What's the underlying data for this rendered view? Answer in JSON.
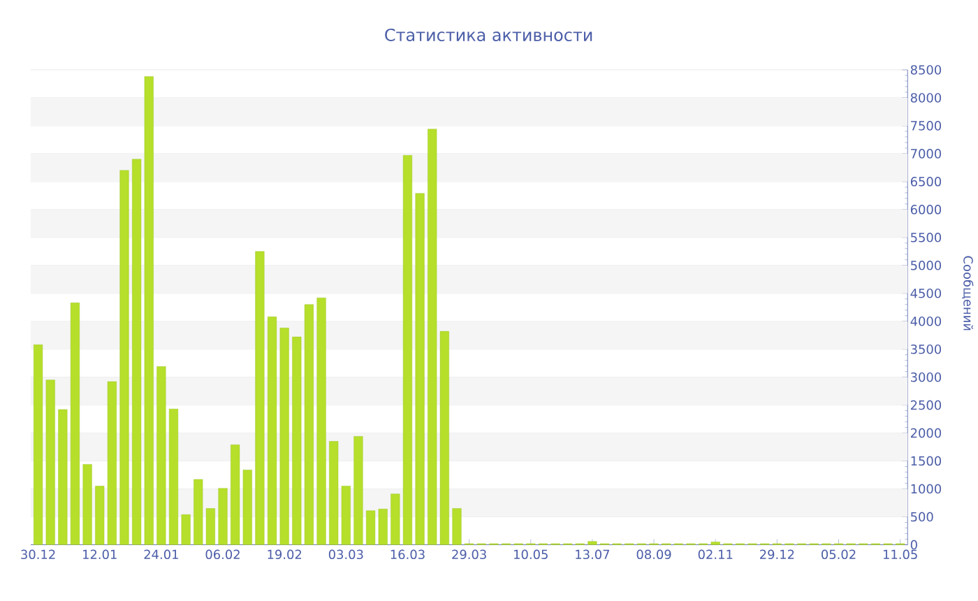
{
  "chart_data": {
    "type": "bar",
    "title": "Статистика активности",
    "ylabel": "Сообщений",
    "categories": [
      "30.12",
      null,
      null,
      null,
      null,
      "12.01",
      null,
      null,
      null,
      null,
      "24.01",
      null,
      null,
      null,
      null,
      "06.02",
      null,
      null,
      null,
      null,
      "19.02",
      null,
      null,
      null,
      null,
      "03.03",
      null,
      null,
      null,
      null,
      "16.03",
      null,
      null,
      null,
      null,
      "29.03",
      null,
      null,
      null,
      null,
      "10.05",
      null,
      null,
      null,
      null,
      "13.07",
      null,
      null,
      null,
      null,
      "08.09",
      null,
      null,
      null,
      null,
      "02.11",
      null,
      null,
      null,
      null,
      "29.12",
      null,
      null,
      null,
      null,
      "05.02",
      null,
      null,
      null,
      null,
      "11.05"
    ],
    "values": [
      3580,
      2950,
      2420,
      4330,
      1440,
      1050,
      2920,
      6700,
      6900,
      8380,
      3190,
      2430,
      540,
      1170,
      650,
      1010,
      1790,
      1340,
      5250,
      4080,
      3880,
      3720,
      4300,
      4420,
      1850,
      1050,
      1940,
      610,
      640,
      910,
      6970,
      6290,
      7440,
      3820,
      650,
      20,
      20,
      20,
      20,
      20,
      20,
      20,
      20,
      20,
      20,
      60,
      20,
      20,
      20,
      20,
      20,
      20,
      20,
      20,
      20,
      50,
      20,
      20,
      20,
      20,
      20,
      20,
      20,
      20,
      20,
      20,
      20,
      20,
      20,
      20,
      20
    ],
    "color": "#b5df2a",
    "ylim": [
      0,
      8500
    ],
    "yticks": [
      0,
      500,
      1000,
      1500,
      2000,
      2500,
      3000,
      3500,
      4000,
      4500,
      5000,
      5500,
      6000,
      6500,
      7000,
      7500,
      8000,
      8500
    ],
    "grid": "y"
  }
}
